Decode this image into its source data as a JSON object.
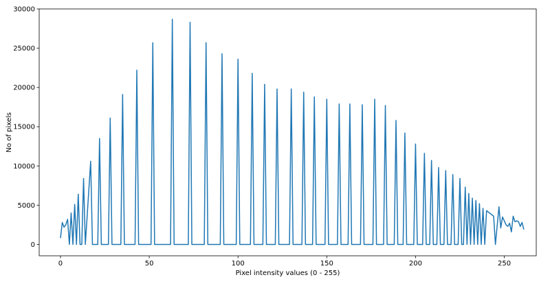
{
  "chart_data": {
    "type": "line",
    "title": "",
    "xlabel": "Pixel intensity values (0 - 255)",
    "ylabel": "No of pixels",
    "xlim": [
      -12,
      268
    ],
    "ylim": [
      -1450,
      30000
    ],
    "xticks": [
      0,
      50,
      100,
      150,
      200,
      250
    ],
    "yticks": [
      0,
      5000,
      10000,
      15000,
      20000,
      25000,
      30000
    ],
    "grid": false,
    "legend": "none",
    "line_color": "#1f77b4",
    "series": [
      {
        "peaks": [
          [
            0,
            800
          ],
          [
            1,
            2800
          ],
          [
            2,
            2200
          ],
          [
            3,
            2500
          ],
          [
            4,
            3200
          ],
          [
            5,
            0
          ],
          [
            6,
            4000
          ],
          [
            7,
            0
          ],
          [
            8,
            5100
          ],
          [
            9,
            0
          ],
          [
            10,
            6400
          ],
          [
            11,
            0
          ],
          [
            12,
            0
          ],
          [
            13,
            8400
          ],
          [
            14,
            0
          ],
          [
            17,
            10600
          ],
          [
            18,
            0
          ],
          [
            21,
            0
          ],
          [
            22,
            13500
          ],
          [
            23,
            0
          ],
          [
            27,
            0
          ],
          [
            28,
            16100
          ],
          [
            29,
            0
          ],
          [
            34,
            0
          ],
          [
            35,
            19100
          ],
          [
            36,
            0
          ],
          [
            42,
            0
          ],
          [
            43,
            22200
          ],
          [
            44,
            0
          ],
          [
            51,
            0
          ],
          [
            52,
            25700
          ],
          [
            53,
            0
          ],
          [
            62,
            0
          ],
          [
            63,
            28700
          ],
          [
            64,
            0
          ],
          [
            72,
            0
          ],
          [
            73,
            28300
          ],
          [
            74,
            0
          ],
          [
            81,
            0
          ],
          [
            82,
            25700
          ],
          [
            83,
            0
          ],
          [
            90,
            0
          ],
          [
            91,
            24300
          ],
          [
            92,
            0
          ],
          [
            99,
            0
          ],
          [
            100,
            23600
          ],
          [
            101,
            0
          ],
          [
            107,
            0
          ],
          [
            108,
            21800
          ],
          [
            109,
            0
          ],
          [
            114,
            0
          ],
          [
            115,
            20400
          ],
          [
            116,
            0
          ],
          [
            121,
            0
          ],
          [
            122,
            19800
          ],
          [
            123,
            0
          ],
          [
            129,
            0
          ],
          [
            130,
            19800
          ],
          [
            131,
            0
          ],
          [
            136,
            0
          ],
          [
            137,
            19400
          ],
          [
            138,
            0
          ],
          [
            142,
            0
          ],
          [
            143,
            18800
          ],
          [
            144,
            0
          ],
          [
            149,
            0
          ],
          [
            150,
            18500
          ],
          [
            151,
            0
          ],
          [
            156,
            0
          ],
          [
            157,
            17900
          ],
          [
            158,
            0
          ],
          [
            162,
            0
          ],
          [
            163,
            17900
          ],
          [
            164,
            0
          ],
          [
            169,
            0
          ],
          [
            170,
            17800
          ],
          [
            171,
            0
          ],
          [
            176,
            0
          ],
          [
            177,
            18500
          ],
          [
            178,
            0
          ],
          [
            182,
            0
          ],
          [
            183,
            17700
          ],
          [
            184,
            0
          ],
          [
            188,
            0
          ],
          [
            189,
            15800
          ],
          [
            190,
            0
          ],
          [
            193,
            0
          ],
          [
            194,
            14200
          ],
          [
            195,
            0
          ],
          [
            199,
            0
          ],
          [
            200,
            12800
          ],
          [
            201,
            0
          ],
          [
            204,
            0
          ],
          [
            205,
            11600
          ],
          [
            206,
            0
          ],
          [
            208,
            0
          ],
          [
            209,
            10700
          ],
          [
            210,
            0
          ],
          [
            212,
            0
          ],
          [
            213,
            9800
          ],
          [
            214,
            0
          ],
          [
            216,
            0
          ],
          [
            217,
            9400
          ],
          [
            218,
            0
          ],
          [
            220,
            0
          ],
          [
            221,
            8900
          ],
          [
            222,
            0
          ],
          [
            224,
            0
          ],
          [
            225,
            8400
          ],
          [
            226,
            0
          ],
          [
            227,
            0
          ],
          [
            228,
            7300
          ],
          [
            229,
            0
          ],
          [
            230,
            6500
          ],
          [
            231,
            0
          ],
          [
            232,
            5900
          ],
          [
            233,
            0
          ],
          [
            234,
            5600
          ],
          [
            235,
            0
          ],
          [
            236,
            5200
          ],
          [
            237,
            0
          ],
          [
            238,
            4600
          ],
          [
            239,
            0
          ],
          [
            240,
            4300
          ],
          [
            244,
            3600
          ],
          [
            245,
            0
          ],
          [
            247,
            4800
          ],
          [
            248,
            2100
          ],
          [
            249,
            3500
          ],
          [
            251,
            2500
          ],
          [
            252,
            2300
          ],
          [
            253,
            2700
          ],
          [
            254,
            1600
          ],
          [
            255,
            3600
          ],
          [
            256,
            2900
          ],
          [
            257,
            3000
          ],
          [
            258,
            2900
          ],
          [
            259,
            2300
          ],
          [
            260,
            2800
          ],
          [
            261,
            1900
          ]
        ]
      }
    ]
  }
}
